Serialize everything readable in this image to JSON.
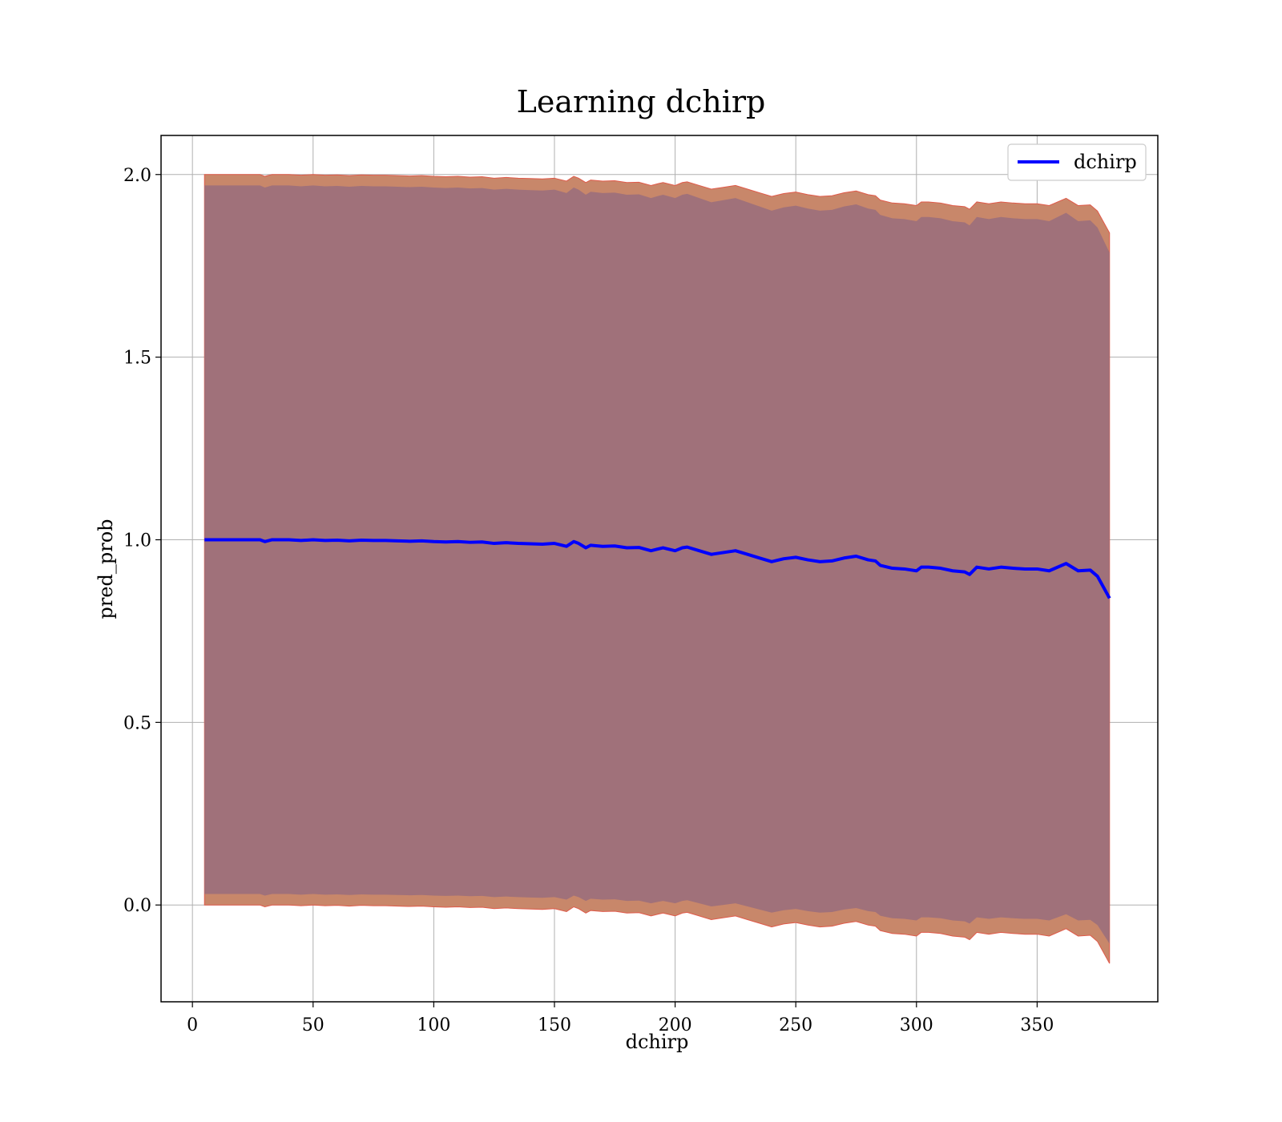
{
  "chart_data": {
    "type": "line",
    "title": "Learning dchirp",
    "xlabel": "dchirp",
    "ylabel": "pred_prob",
    "xlim": [
      -13,
      400
    ],
    "ylim": [
      -0.265,
      2.107
    ],
    "xticks": [
      0,
      50,
      100,
      150,
      200,
      250,
      300,
      350
    ],
    "yticks": [
      0.0,
      0.5,
      1.0,
      1.5,
      2.0
    ],
    "xtick_labels": [
      "0",
      "50",
      "100",
      "150",
      "200",
      "250",
      "300",
      "350"
    ],
    "ytick_labels": [
      "0.0",
      "0.5",
      "1.0",
      "1.5",
      "2.0"
    ],
    "grid": true,
    "legend_position": "top-right",
    "colors": {
      "line": "#0000ff",
      "outer_band": "#c8876a",
      "outer_band_edge": "#e05a4a",
      "inner_band": "#a0717a"
    },
    "series": [
      {
        "name": "dchirp",
        "x": [
          5,
          10,
          15,
          20,
          25,
          28,
          30,
          33,
          40,
          45,
          50,
          55,
          60,
          65,
          70,
          75,
          80,
          85,
          90,
          95,
          100,
          105,
          110,
          115,
          120,
          125,
          130,
          135,
          140,
          145,
          150,
          155,
          158,
          160,
          163,
          165,
          170,
          175,
          180,
          185,
          190,
          193,
          195,
          200,
          203,
          205,
          210,
          215,
          220,
          225,
          230,
          235,
          240,
          245,
          250,
          255,
          260,
          265,
          270,
          275,
          280,
          283,
          285,
          290,
          295,
          300,
          302,
          305,
          310,
          315,
          320,
          322,
          325,
          330,
          335,
          340,
          345,
          350,
          355,
          362,
          367,
          372,
          375,
          380
        ],
        "y": [
          1.0,
          1.0,
          1.0,
          1.0,
          1.0,
          1.0,
          0.995,
          1.0,
          1.0,
          0.998,
          1.0,
          0.998,
          0.999,
          0.997,
          0.999,
          0.998,
          0.998,
          0.997,
          0.996,
          0.997,
          0.995,
          0.994,
          0.995,
          0.993,
          0.994,
          0.99,
          0.992,
          0.99,
          0.989,
          0.988,
          0.99,
          0.982,
          0.995,
          0.99,
          0.978,
          0.985,
          0.982,
          0.983,
          0.978,
          0.979,
          0.97,
          0.975,
          0.978,
          0.97,
          0.978,
          0.98,
          0.97,
          0.96,
          0.965,
          0.97,
          0.96,
          0.95,
          0.94,
          0.948,
          0.952,
          0.945,
          0.94,
          0.942,
          0.95,
          0.955,
          0.945,
          0.942,
          0.93,
          0.922,
          0.92,
          0.915,
          0.925,
          0.925,
          0.922,
          0.915,
          0.912,
          0.905,
          0.925,
          0.92,
          0.925,
          0.922,
          0.92,
          0.92,
          0.915,
          0.935,
          0.915,
          0.917,
          0.9,
          0.84
        ]
      }
    ]
  }
}
